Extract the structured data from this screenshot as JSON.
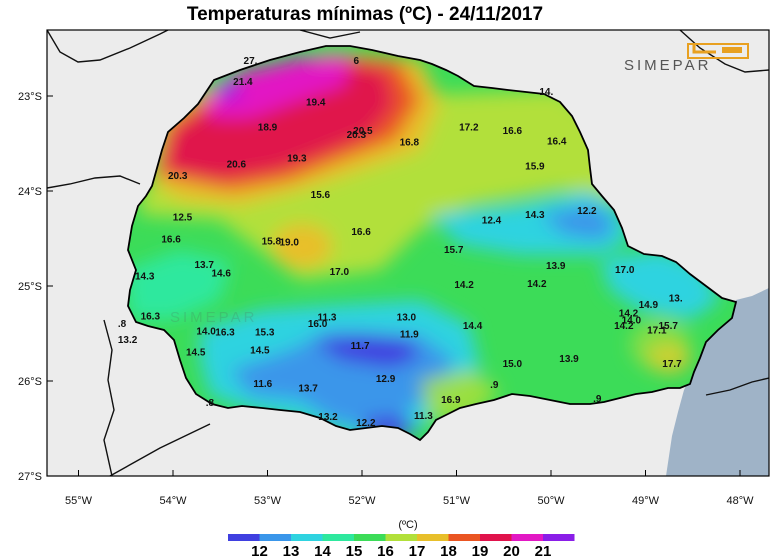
{
  "title": "Temperaturas mínimas (ºC) - 24/11/2017",
  "logo_text": "SIMEPAR",
  "watermark_text": "SIMEPAR",
  "map": {
    "lon_labels": [
      "55°W",
      "54°W",
      "53°W",
      "52°W",
      "51°W",
      "50°W",
      "49°W",
      "48°W"
    ],
    "lat_labels": [
      "23°S",
      "24°S",
      "25°S",
      "26°S",
      "27°S"
    ],
    "stations": [
      {
        "v": "21.4",
        "lon": -53.26,
        "lat": -22.84
      },
      {
        "v": "19.4",
        "lon": -52.49,
        "lat": -23.06
      },
      {
        "v": "18.9",
        "lon": -53.0,
        "lat": -23.32
      },
      {
        "v": "20.5",
        "lon": -51.99,
        "lat": -23.36
      },
      {
        "v": "20.3",
        "lon": -52.06,
        "lat": -23.4
      },
      {
        "v": "17.2",
        "lon": -50.87,
        "lat": -23.32
      },
      {
        "v": "16.6",
        "lon": -50.41,
        "lat": -23.36
      },
      {
        "v": "16.8",
        "lon": -51.5,
        "lat": -23.48
      },
      {
        "v": "16.4",
        "lon": -49.94,
        "lat": -23.47
      },
      {
        "v": "19.3",
        "lon": -52.69,
        "lat": -23.65
      },
      {
        "v": "20.6",
        "lon": -53.33,
        "lat": -23.71
      },
      {
        "v": "15.9",
        "lon": -50.17,
        "lat": -23.73
      },
      {
        "v": "20.3",
        "lon": -53.95,
        "lat": -23.83
      },
      {
        "v": "15.6",
        "lon": -52.44,
        "lat": -24.03
      },
      {
        "v": "14.3",
        "lon": -50.17,
        "lat": -24.24
      },
      {
        "v": "12.2",
        "lon": -49.62,
        "lat": -24.2
      },
      {
        "v": "12.5",
        "lon": -53.9,
        "lat": -24.27
      },
      {
        "v": "12.4",
        "lon": -50.63,
        "lat": -24.3
      },
      {
        "v": "16.6",
        "lon": -52.01,
        "lat": -24.42
      },
      {
        "v": "16.6",
        "lon": -54.02,
        "lat": -24.5
      },
      {
        "v": "15.8",
        "lon": -52.96,
        "lat": -24.52
      },
      {
        "v": "19.0",
        "lon": -52.77,
        "lat": -24.53
      },
      {
        "v": "15.7",
        "lon": -51.03,
        "lat": -24.61
      },
      {
        "v": "13.7",
        "lon": -53.67,
        "lat": -24.77
      },
      {
        "v": "17.0",
        "lon": -52.24,
        "lat": -24.84
      },
      {
        "v": "13.9",
        "lon": -49.95,
        "lat": -24.78
      },
      {
        "v": "17.0",
        "lon": -49.22,
        "lat": -24.82
      },
      {
        "v": "14.6",
        "lon": -53.49,
        "lat": -24.86
      },
      {
        "v": "14.3",
        "lon": -54.3,
        "lat": -24.89
      },
      {
        "v": "14.2",
        "lon": -50.92,
        "lat": -24.98
      },
      {
        "v": "14.2",
        "lon": -50.15,
        "lat": -24.97
      },
      {
        "v": "13.",
        "lon": -48.68,
        "lat": -25.12
      },
      {
        "v": "14.9",
        "lon": -48.97,
        "lat": -25.19
      },
      {
        "v": "16.3",
        "lon": -54.24,
        "lat": -25.31
      },
      {
        "v": "11.3",
        "lon": -52.37,
        "lat": -25.32
      },
      {
        "v": "13.0",
        "lon": -51.53,
        "lat": -25.32
      },
      {
        "v": "14.2",
        "lon": -49.18,
        "lat": -25.28
      },
      {
        "v": "14.0",
        "lon": -49.15,
        "lat": -25.35
      },
      {
        "v": ".8",
        "lon": -54.54,
        "lat": -25.39
      },
      {
        "v": "16.0",
        "lon": -52.47,
        "lat": -25.39
      },
      {
        "v": "14.4",
        "lon": -50.83,
        "lat": -25.41
      },
      {
        "v": "14.2",
        "lon": -49.23,
        "lat": -25.41
      },
      {
        "v": "15.7",
        "lon": -48.76,
        "lat": -25.41
      },
      {
        "v": "17.1",
        "lon": -48.88,
        "lat": -25.46
      },
      {
        "v": "14.0",
        "lon": -53.65,
        "lat": -25.47
      },
      {
        "v": "16.3",
        "lon": -53.45,
        "lat": -25.48
      },
      {
        "v": "15.3",
        "lon": -53.03,
        "lat": -25.48
      },
      {
        "v": "11.9",
        "lon": -51.5,
        "lat": -25.5
      },
      {
        "v": "13.2",
        "lon": -54.48,
        "lat": -25.56
      },
      {
        "v": "11.7",
        "lon": -52.02,
        "lat": -25.62
      },
      {
        "v": "14.5",
        "lon": -53.76,
        "lat": -25.69
      },
      {
        "v": "14.5",
        "lon": -53.08,
        "lat": -25.67
      },
      {
        "v": "15.0",
        "lon": -50.41,
        "lat": -25.81
      },
      {
        "v": "13.9",
        "lon": -49.81,
        "lat": -25.76
      },
      {
        "v": "17.7",
        "lon": -48.72,
        "lat": -25.81
      },
      {
        "v": "12.9",
        "lon": -51.75,
        "lat": -25.97
      },
      {
        "v": "11.6",
        "lon": -53.05,
        "lat": -26.02
      },
      {
        "v": "13.7",
        "lon": -52.57,
        "lat": -26.07
      },
      {
        "v": ".8",
        "lon": -53.61,
        "lat": -26.22
      },
      {
        "v": "16.9",
        "lon": -51.06,
        "lat": -26.19
      },
      {
        "v": ".9",
        "lon": -50.6,
        "lat": -26.03
      },
      {
        "v": ".9",
        "lon": -49.51,
        "lat": -26.18
      },
      {
        "v": "11.3",
        "lon": -51.35,
        "lat": -26.36
      },
      {
        "v": "13.2",
        "lon": -52.36,
        "lat": -26.37
      },
      {
        "v": "12.2",
        "lon": -51.96,
        "lat": -26.43
      },
      {
        "v": "6",
        "lon": -52.06,
        "lat": -22.62
      },
      {
        "v": "27.",
        "lon": -53.18,
        "lat": -22.62
      },
      {
        "v": "14.",
        "lon": -50.05,
        "lat": -22.95
      }
    ]
  },
  "colorbar": {
    "unit": "(ºC)",
    "ticks": [
      "12",
      "13",
      "14",
      "15",
      "16",
      "17",
      "18",
      "19",
      "20",
      "21"
    ],
    "colors": [
      "#3f3fe0",
      "#3a96ea",
      "#2fd3e0",
      "#2ee89e",
      "#3cdc58",
      "#b2e03a",
      "#e8bf2a",
      "#ea5522",
      "#e0134c",
      "#e218c4",
      "#8a1ee8"
    ]
  }
}
